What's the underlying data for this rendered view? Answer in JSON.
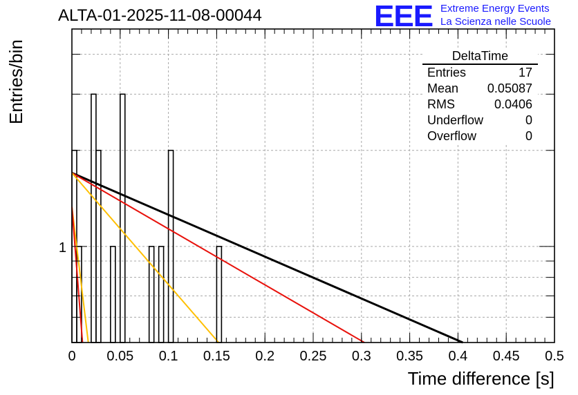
{
  "header": {
    "run_title": "ALTA-01-2025-11-08-00044",
    "logo_text": "EEE",
    "brand_line1": "Extreme Energy Events",
    "brand_line2": "La Scienza nelle Scuole"
  },
  "stats_box": {
    "title": "DeltaTime",
    "rows": [
      {
        "label": "Entries",
        "value": "17"
      },
      {
        "label": "Mean",
        "value": "0.05087"
      },
      {
        "label": "RMS",
        "value": "0.0406"
      },
      {
        "label": "Underflow",
        "value": "0"
      },
      {
        "label": "Overflow",
        "value": "0"
      }
    ]
  },
  "chart_data": {
    "type": "histogram",
    "title": "ALTA-01-2025-11-08-00044",
    "xlabel": "Time difference [s]",
    "ylabel": "Entries/bin",
    "xlim": [
      0,
      0.5
    ],
    "ylim": [
      0.5,
      4.8
    ],
    "y_scale": "log",
    "grid": true,
    "x_ticks": [
      0,
      0.05,
      0.1,
      0.15,
      0.2,
      0.25,
      0.3,
      0.35,
      0.4,
      0.45,
      0.5
    ],
    "x_tick_labels": [
      "0",
      "0.05",
      "0.1",
      "0.15",
      "0.2",
      "0.25",
      "0.3",
      "0.35",
      "0.4",
      "0.45",
      "0.5"
    ],
    "y_tick_labels": [
      {
        "value": 1,
        "label": "1"
      }
    ],
    "bin_width": 0.005,
    "bins": [
      {
        "x": 0.0,
        "count": 2
      },
      {
        "x": 0.005,
        "count": 1
      },
      {
        "x": 0.02,
        "count": 3
      },
      {
        "x": 0.025,
        "count": 2
      },
      {
        "x": 0.04,
        "count": 1
      },
      {
        "x": 0.05,
        "count": 3
      },
      {
        "x": 0.08,
        "count": 1
      },
      {
        "x": 0.09,
        "count": 1
      },
      {
        "x": 0.1,
        "count": 2
      },
      {
        "x": 0.15,
        "count": 1
      }
    ],
    "series": [
      {
        "name": "fit-black",
        "color": "#000000",
        "points": [
          [
            0,
            1.7
          ],
          [
            0.405,
            0.5
          ]
        ]
      },
      {
        "name": "fit-red",
        "color": "#e8120c",
        "points": [
          [
            0,
            1.7
          ],
          [
            0.303,
            0.5
          ]
        ]
      },
      {
        "name": "fit-orange",
        "color": "#ffbf00",
        "points": [
          [
            0,
            1.7
          ],
          [
            0.152,
            0.5
          ]
        ]
      },
      {
        "name": "fit-steep-orange",
        "color": "#ffbf00",
        "points": [
          [
            0,
            1.33
          ],
          [
            0.017,
            0.5
          ]
        ]
      },
      {
        "name": "fit-steep-red",
        "color": "#e8120c",
        "points": [
          [
            0,
            1.33
          ],
          [
            0.011,
            0.5
          ]
        ]
      }
    ]
  }
}
